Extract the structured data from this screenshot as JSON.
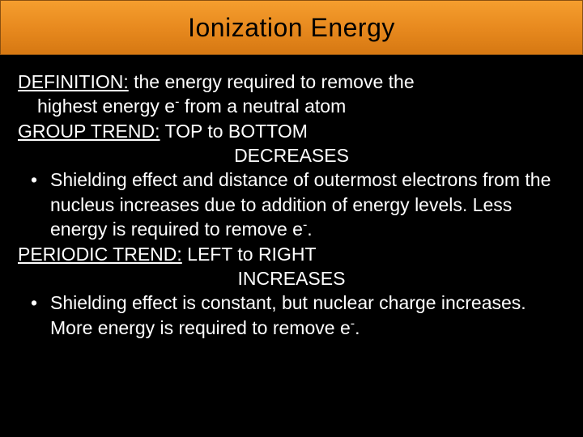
{
  "title": "Ionization Energy",
  "definition_label": "DEFINITION:",
  "definition_text_1": " the energy required to remove the",
  "definition_text_2a": "highest energy e",
  "definition_text_2b": " from a neutral atom",
  "group_trend_label": "GROUP TREND:",
  "group_trend_text": " TOP to BOTTOM",
  "group_trend_result": "DECREASES",
  "group_bullet_a": "Shielding effect and distance of outermost electrons from the nucleus increases due to addition of energy levels. Less energy is required to remove e",
  "group_bullet_b": ".",
  "periodic_trend_label": "PERIODIC TREND:",
  "periodic_trend_text": " LEFT to RIGHT",
  "periodic_trend_result": "INCREASES",
  "periodic_bullet_a": "Shielding effect is constant, but nuclear charge increases. More energy is required to remove e",
  "periodic_bullet_b": ".",
  "bullet_char": "•",
  "minus": "-",
  "colors": {
    "background": "#000000",
    "title_bar_top": "#f59e2e",
    "title_bar_bottom": "#d67812",
    "title_text": "#000000",
    "body_text": "#ffffff"
  }
}
